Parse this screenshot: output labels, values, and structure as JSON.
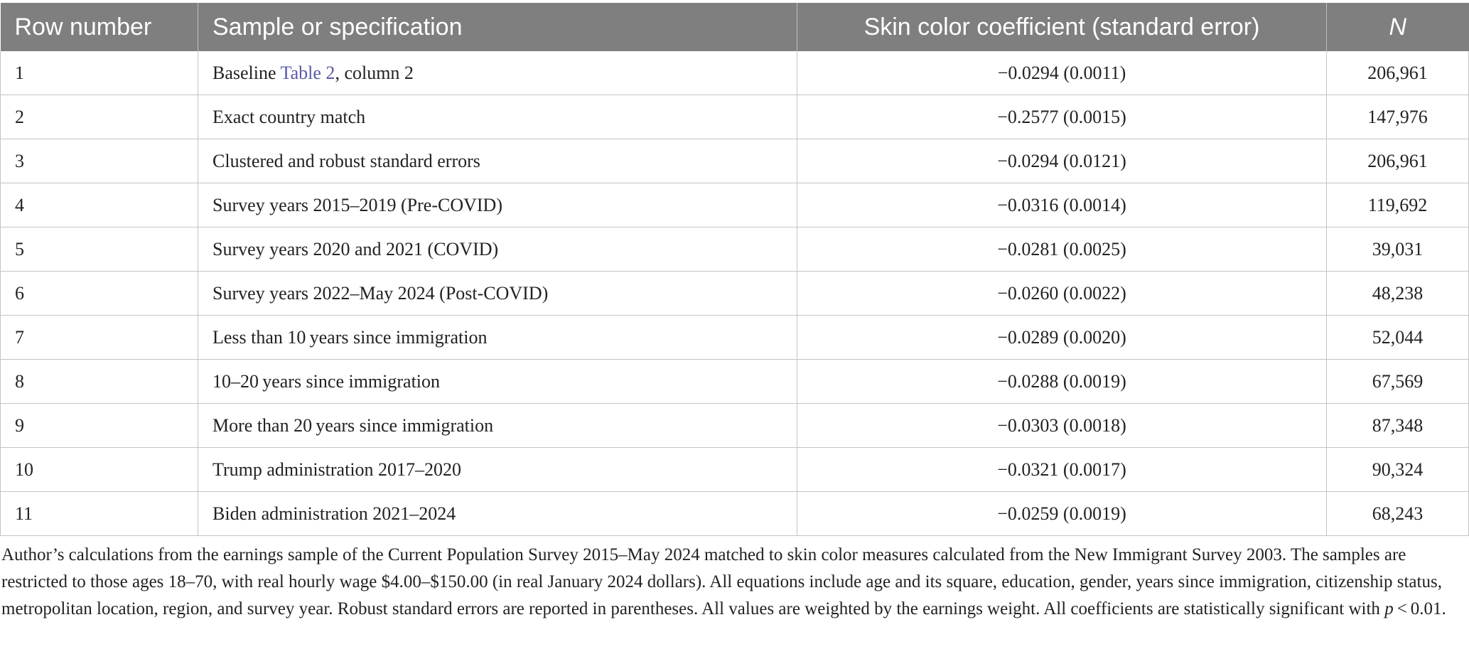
{
  "table": {
    "headers": [
      "Row number",
      "Sample or specification",
      "Skin color coefficient (standard error)",
      "N"
    ],
    "rows": [
      {
        "num": "1",
        "spec_before": "Baseline ",
        "spec_link": "Table 2",
        "spec_after": ", column 2",
        "coef": "−0.0294 (0.0011)",
        "n": "206,961"
      },
      {
        "num": "2",
        "spec": "Exact country match",
        "coef": "−0.2577 (0.0015)",
        "n": "147,976"
      },
      {
        "num": "3",
        "spec": "Clustered and robust standard errors",
        "coef": "−0.0294 (0.0121)",
        "n": "206,961"
      },
      {
        "num": "4",
        "spec": "Survey years 2015–2019 (Pre-COVID)",
        "coef": "−0.0316 (0.0014)",
        "n": "119,692"
      },
      {
        "num": "5",
        "spec": "Survey years 2020 and 2021 (COVID)",
        "coef": "−0.0281 (0.0025)",
        "n": "39,031"
      },
      {
        "num": "6",
        "spec": "Survey years 2022–May 2024 (Post-COVID)",
        "coef": "−0.0260 (0.0022)",
        "n": "48,238"
      },
      {
        "num": "7",
        "spec": "Less than 10 years since immigration",
        "coef": "−0.0289 (0.0020)",
        "n": "52,044"
      },
      {
        "num": "8",
        "spec": "10–20 years since immigration",
        "coef": "−0.0288 (0.0019)",
        "n": "67,569"
      },
      {
        "num": "9",
        "spec": "More than 20 years since immigration",
        "coef": "−0.0303 (0.0018)",
        "n": "87,348"
      },
      {
        "num": "10",
        "spec": "Trump administration 2017–2020",
        "coef": "−0.0321 (0.0017)",
        "n": "90,324"
      },
      {
        "num": "11",
        "spec": "Biden administration 2021–2024",
        "coef": "−0.0259 (0.0019)",
        "n": "68,243"
      }
    ]
  },
  "footnote": {
    "text": "Author’s calculations from the earnings sample of the Current Population Survey 2015–May 2024 matched to skin color measures calculated from the New Immigrant Survey 2003. The samples are restricted to those ages 18–70, with real hourly wage $4.00–$150.00 (in real January 2024 dollars). All equations include age and its square, education, gender, years since immigration, citizenship status, metropolitan location, region, and survey year. Robust standard errors are reported in parentheses. All values are weighted by the earnings weight. All coefficients are statistically significant with ",
    "p_symbol": "p",
    "p_value": " < 0.01."
  },
  "colors": {
    "header_bg": "#7f7f7f",
    "header_text": "#ffffff",
    "link": "#5a5aa8",
    "grid": "#c4c4c4"
  }
}
